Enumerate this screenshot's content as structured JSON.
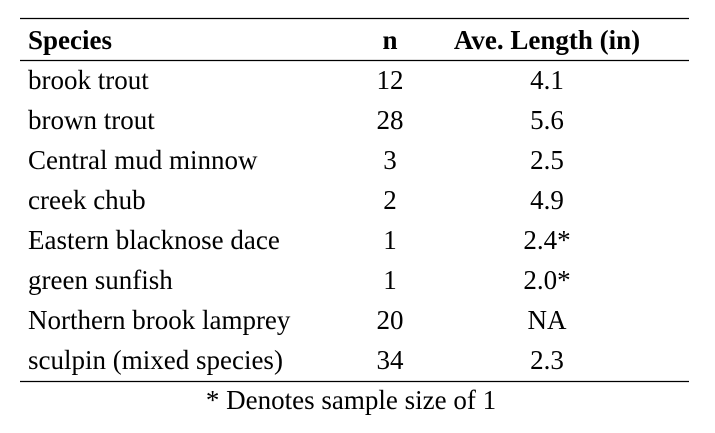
{
  "table": {
    "columns": [
      "Species",
      "n",
      "Ave. Length (in)"
    ],
    "rows": [
      [
        "brook trout",
        "12",
        "4.1"
      ],
      [
        "brown trout",
        "28",
        "5.6"
      ],
      [
        "Central mud minnow",
        "3",
        "2.5"
      ],
      [
        "creek chub",
        "2",
        "4.9"
      ],
      [
        "Eastern blacknose dace",
        "1",
        "2.4*"
      ],
      [
        "green sunfish",
        "1",
        "2.0*"
      ],
      [
        "Northern brook lamprey",
        "20",
        "NA"
      ],
      [
        "sculpin (mixed species)",
        "34",
        "2.3"
      ]
    ],
    "footnote": "* Denotes sample size of 1"
  }
}
